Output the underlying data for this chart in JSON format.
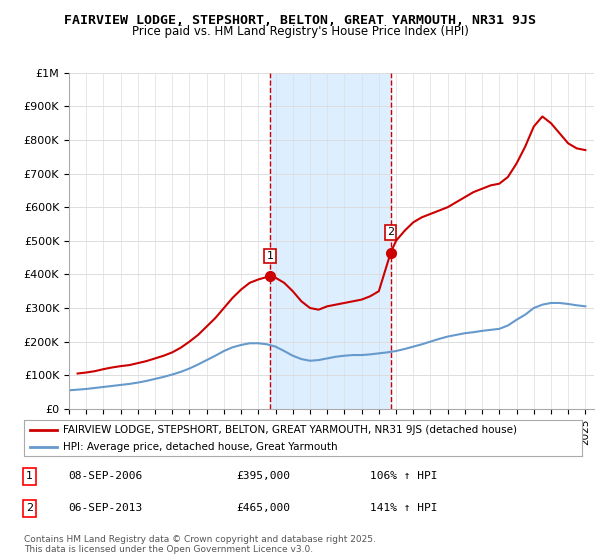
{
  "title": "FAIRVIEW LODGE, STEPSHORT, BELTON, GREAT YARMOUTH, NR31 9JS",
  "subtitle": "Price paid vs. HM Land Registry's House Price Index (HPI)",
  "legend_line1": "FAIRVIEW LODGE, STEPSHORT, BELTON, GREAT YARMOUTH, NR31 9JS (detached house)",
  "legend_line2": "HPI: Average price, detached house, Great Yarmouth",
  "footnote": "Contains HM Land Registry data © Crown copyright and database right 2025.\nThis data is licensed under the Open Government Licence v3.0.",
  "sale1_label": "1",
  "sale1_date": "08-SEP-2006",
  "sale1_price": "£395,000",
  "sale1_hpi": "106% ↑ HPI",
  "sale1_x": 2006.69,
  "sale1_y": 395000,
  "sale2_label": "2",
  "sale2_date": "06-SEP-2013",
  "sale2_price": "£465,000",
  "sale2_hpi": "141% ↑ HPI",
  "sale2_x": 2013.69,
  "sale2_y": 465000,
  "red_line_color": "#cc0000",
  "blue_line_color": "#6699cc",
  "shade_color": "#ddeeff",
  "vline_color": "#cc0000",
  "ylim": [
    0,
    1000000
  ],
  "xlim": [
    1995,
    2025.5
  ],
  "yticks": [
    0,
    100000,
    200000,
    300000,
    400000,
    500000,
    600000,
    700000,
    800000,
    900000,
    1000000
  ],
  "ytick_labels": [
    "£0",
    "£100K",
    "£200K",
    "£300K",
    "£400K",
    "£500K",
    "£600K",
    "£700K",
    "£800K",
    "£900K",
    "£1M"
  ],
  "red_x": [
    1995.5,
    1996.0,
    1996.5,
    1997.0,
    1997.5,
    1998.0,
    1998.5,
    1999.0,
    1999.5,
    2000.0,
    2000.5,
    2001.0,
    2001.5,
    2002.0,
    2002.5,
    2003.0,
    2003.5,
    2004.0,
    2004.5,
    2005.0,
    2005.5,
    2006.0,
    2006.69,
    2007.0,
    2007.5,
    2008.0,
    2008.5,
    2009.0,
    2009.5,
    2010.0,
    2010.5,
    2011.0,
    2011.5,
    2012.0,
    2012.5,
    2013.0,
    2013.69,
    2014.0,
    2014.5,
    2015.0,
    2015.5,
    2016.0,
    2016.5,
    2017.0,
    2017.5,
    2018.0,
    2018.5,
    2019.0,
    2019.5,
    2020.0,
    2020.5,
    2021.0,
    2021.5,
    2022.0,
    2022.5,
    2023.0,
    2023.5,
    2024.0,
    2024.5,
    2025.0
  ],
  "red_y": [
    105000,
    108000,
    112000,
    118000,
    123000,
    127000,
    130000,
    136000,
    142000,
    150000,
    158000,
    168000,
    182000,
    200000,
    220000,
    245000,
    270000,
    300000,
    330000,
    355000,
    375000,
    385000,
    395000,
    390000,
    375000,
    350000,
    320000,
    300000,
    295000,
    305000,
    310000,
    315000,
    320000,
    325000,
    335000,
    350000,
    465000,
    500000,
    530000,
    555000,
    570000,
    580000,
    590000,
    600000,
    615000,
    630000,
    645000,
    655000,
    665000,
    670000,
    690000,
    730000,
    780000,
    840000,
    870000,
    850000,
    820000,
    790000,
    775000,
    770000
  ],
  "blue_x": [
    1995.0,
    1995.5,
    1996.0,
    1996.5,
    1997.0,
    1997.5,
    1998.0,
    1998.5,
    1999.0,
    1999.5,
    2000.0,
    2000.5,
    2001.0,
    2001.5,
    2002.0,
    2002.5,
    2003.0,
    2003.5,
    2004.0,
    2004.5,
    2005.0,
    2005.5,
    2006.0,
    2006.5,
    2007.0,
    2007.5,
    2008.0,
    2008.5,
    2009.0,
    2009.5,
    2010.0,
    2010.5,
    2011.0,
    2011.5,
    2012.0,
    2012.5,
    2013.0,
    2013.5,
    2014.0,
    2014.5,
    2015.0,
    2015.5,
    2016.0,
    2016.5,
    2017.0,
    2017.5,
    2018.0,
    2018.5,
    2019.0,
    2019.5,
    2020.0,
    2020.5,
    2021.0,
    2021.5,
    2022.0,
    2022.5,
    2023.0,
    2023.5,
    2024.0,
    2024.5,
    2025.0
  ],
  "blue_y": [
    55000,
    57000,
    59000,
    62000,
    65000,
    68000,
    71000,
    74000,
    78000,
    83000,
    89000,
    95000,
    102000,
    110000,
    120000,
    132000,
    145000,
    158000,
    172000,
    183000,
    190000,
    195000,
    195000,
    192000,
    185000,
    172000,
    158000,
    148000,
    143000,
    145000,
    150000,
    155000,
    158000,
    160000,
    160000,
    162000,
    165000,
    168000,
    172000,
    178000,
    185000,
    192000,
    200000,
    208000,
    215000,
    220000,
    225000,
    228000,
    232000,
    235000,
    238000,
    248000,
    265000,
    280000,
    300000,
    310000,
    315000,
    315000,
    312000,
    308000,
    305000
  ],
  "background_color": "#ffffff",
  "grid_color": "#dddddd"
}
